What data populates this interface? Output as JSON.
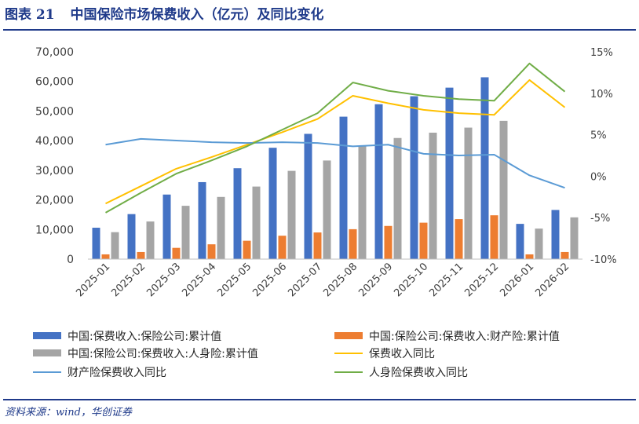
{
  "header": {
    "figure_label": "图表 21",
    "title": "中国保险市场保费收入（亿元）及同比变化"
  },
  "source": "资料来源：wind，华创证券",
  "chart_data": {
    "type": "bar",
    "categories": [
      "2025-01",
      "2025-02",
      "2025-03",
      "2025-04",
      "2025-05",
      "2025-06",
      "2025-07",
      "2025-08",
      "2025-09",
      "2025-10",
      "2025-11",
      "2025-12",
      "2026-01",
      "2026-02"
    ],
    "y_left": {
      "ticks": [
        "0",
        "10,000",
        "20,000",
        "30,000",
        "40,000",
        "50,000",
        "60,000",
        "70,000"
      ],
      "range": [
        0,
        70000
      ]
    },
    "y_right": {
      "ticks": [
        "-10%",
        "-5%",
        "0%",
        "5%",
        "10%",
        "15%"
      ],
      "range": [
        -10,
        15
      ]
    },
    "bar_series": [
      {
        "name": "中国:保费收入:保险公司:累计值",
        "color": "#4472c4",
        "values": [
          10600,
          15200,
          21800,
          26000,
          30700,
          37600,
          42300,
          48100,
          52300,
          55000,
          57900,
          61400,
          11900,
          16600
        ]
      },
      {
        "name": "中国:保险公司:保费收入:财产险:累计值",
        "color": "#ed7d31",
        "values": [
          1600,
          2400,
          3800,
          5000,
          6200,
          7900,
          9000,
          10100,
          11200,
          12300,
          13500,
          14800,
          1600,
          2400
        ]
      },
      {
        "name": "中国:保险公司:保费收入:人身险:累计值",
        "color": "#a5a5a5",
        "values": [
          9100,
          12700,
          18000,
          21000,
          24500,
          29800,
          33300,
          38100,
          40900,
          42700,
          44400,
          46700,
          10300,
          14100
        ]
      }
    ],
    "line_series": [
      {
        "name": "保费收入同比",
        "color": "#ffc000",
        "values": [
          -3.3,
          -1.2,
          0.9,
          2.3,
          3.8,
          5.3,
          6.9,
          9.7,
          8.8,
          8.0,
          7.6,
          7.4,
          11.6,
          8.3
        ]
      },
      {
        "name": "财产险保费收入同比",
        "color": "#5b9bd5",
        "values": [
          3.8,
          4.5,
          4.3,
          4.1,
          4.0,
          4.1,
          4.0,
          3.6,
          3.8,
          2.7,
          2.5,
          2.6,
          0.1,
          -1.4
        ]
      },
      {
        "name": "人身险保费收入同比",
        "color": "#70ad47",
        "values": [
          -4.4,
          -2.0,
          0.3,
          1.9,
          3.6,
          5.6,
          7.6,
          11.3,
          10.3,
          9.7,
          9.3,
          9.1,
          13.6,
          10.2
        ]
      }
    ],
    "legend": [
      {
        "label": "中国:保费收入:保险公司:累计值",
        "kind": "bar",
        "color": "#4472c4"
      },
      {
        "label": "中国:保险公司:保费收入:财产险:累计值",
        "kind": "bar",
        "color": "#ed7d31"
      },
      {
        "label": "中国:保险公司:保费收入:人身险:累计值",
        "kind": "bar",
        "color": "#a5a5a5"
      },
      {
        "label": "保费收入同比",
        "kind": "line",
        "color": "#ffc000"
      },
      {
        "label": "财产险保费收入同比",
        "kind": "line",
        "color": "#5b9bd5"
      },
      {
        "label": "人身险保费收入同比",
        "kind": "line",
        "color": "#70ad47"
      }
    ],
    "legend_placement": "bottom",
    "grid": false
  }
}
